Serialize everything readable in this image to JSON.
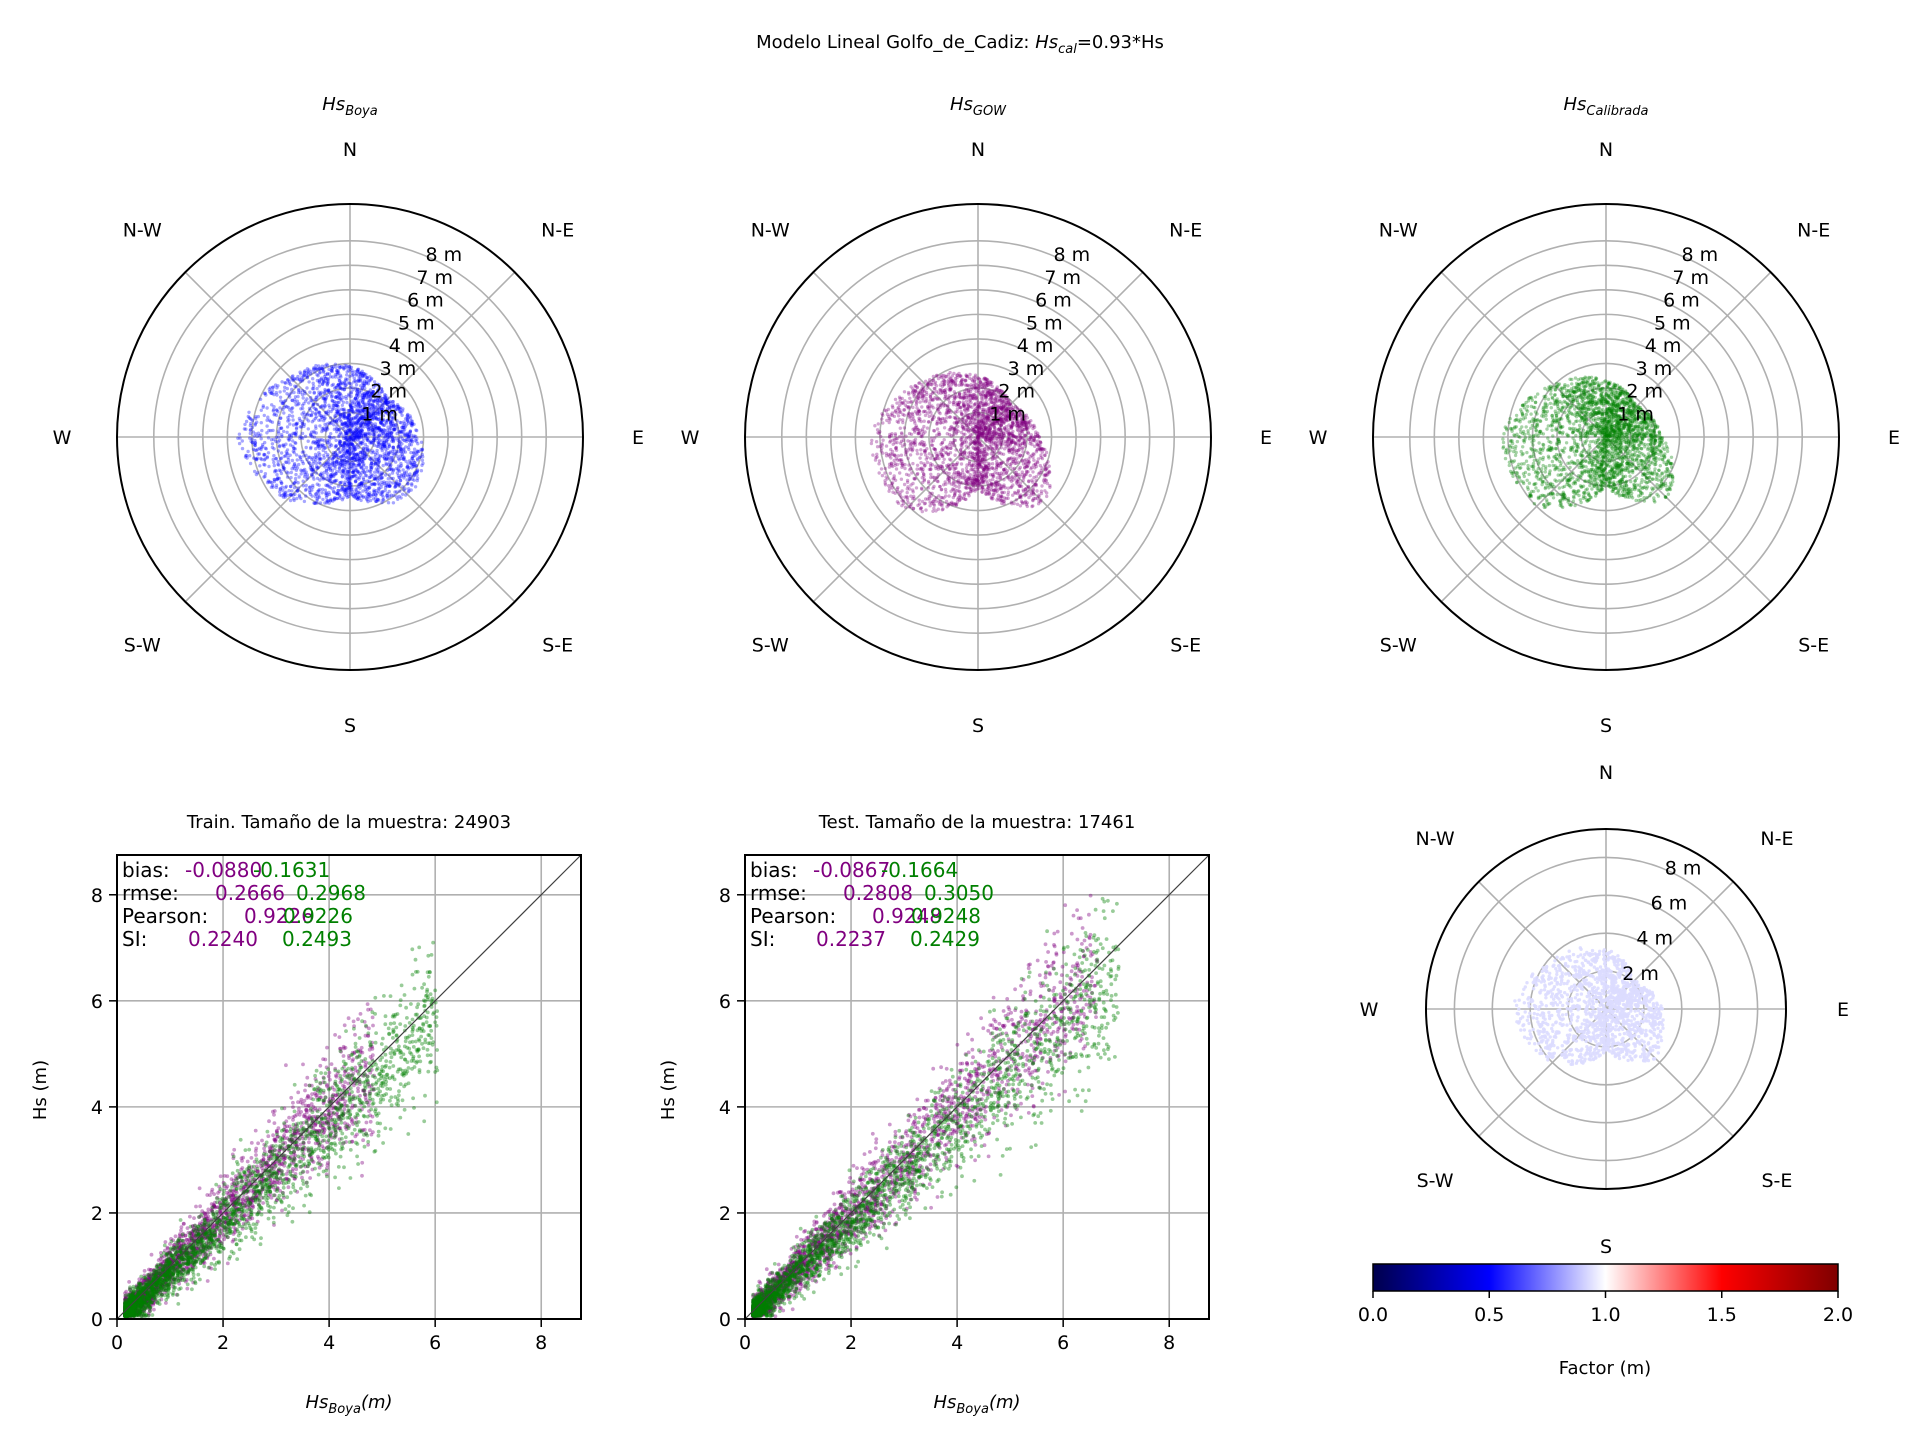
{
  "figure": {
    "title_prefix": "Modelo Lineal Golfo_de_Cadiz: ",
    "title_var": "Hs",
    "title_sub": "cal",
    "title_suffix": "=0.93*Hs"
  },
  "colors": {
    "boya": "#0000ff",
    "gow": "#800080",
    "calibrada": "#008000",
    "factor_points": "#dcdcff",
    "grid": "#b0b0b0",
    "one_to_one": "#404040"
  },
  "chart_data": [
    {
      "type": "scatter",
      "projection": "polar",
      "title_var": "Hs",
      "title_sub": "Boya",
      "directions": [
        "N",
        "N-E",
        "E",
        "S-E",
        "S",
        "S-W",
        "W",
        "N-W"
      ],
      "r_ticks": [
        1,
        2,
        3,
        4,
        5,
        6,
        7,
        8
      ],
      "r_tick_labels": [
        "1 m",
        "2 m",
        "3 m",
        "4 m",
        "5 m",
        "6 m",
        "7 m",
        "8 m"
      ],
      "rlim": [
        0,
        9.5
      ],
      "color": "#0000ff",
      "cloud": {
        "max_r": {
          "N": 2.9,
          "N-E": 2.2,
          "E": 2.9,
          "S-E": 3.5,
          "S": 2.4,
          "S-W": 3.6,
          "W": 4.6,
          "N-W": 3.5
        }
      }
    },
    {
      "type": "scatter",
      "projection": "polar",
      "title_var": "Hs",
      "title_sub": "GOW",
      "directions": [
        "N",
        "N-E",
        "E",
        "S-E",
        "S",
        "S-W",
        "W",
        "N-W"
      ],
      "r_ticks": [
        1,
        2,
        3,
        4,
        5,
        6,
        7,
        8
      ],
      "r_tick_labels": [
        "1 m",
        "2 m",
        "3 m",
        "4 m",
        "5 m",
        "6 m",
        "7 m",
        "8 m"
      ],
      "rlim": [
        0,
        9.5
      ],
      "color": "#800080",
      "cloud": {
        "max_r": {
          "N": 2.5,
          "N-E": 1.9,
          "E": 2.5,
          "S-E": 3.9,
          "S": 2.1,
          "S-W": 4.2,
          "W": 4.4,
          "N-W": 3.2
        }
      }
    },
    {
      "type": "scatter",
      "projection": "polar",
      "title_var": "Hs",
      "title_sub": "Calibrada",
      "directions": [
        "N",
        "N-E",
        "E",
        "S-E",
        "S",
        "S-W",
        "W",
        "N-W"
      ],
      "r_ticks": [
        1,
        2,
        3,
        4,
        5,
        6,
        7,
        8
      ],
      "r_tick_labels": [
        "1 m",
        "2 m",
        "3 m",
        "4 m",
        "5 m",
        "6 m",
        "7 m",
        "8 m"
      ],
      "rlim": [
        0,
        9.5
      ],
      "color": "#008000",
      "cloud": {
        "max_r": {
          "N": 2.3,
          "N-E": 1.8,
          "E": 2.3,
          "S-E": 3.6,
          "S": 2.0,
          "S-W": 4.0,
          "W": 4.3,
          "N-W": 3.0
        }
      }
    },
    {
      "type": "scatter",
      "title": "Train. Tamaño de la muestra: 24903",
      "xlabel_var": "Hs",
      "xlabel_sub": "Boya",
      "xlabel_suffix": "(m)",
      "ylabel": "Hs (m)",
      "xlim": [
        0,
        8.75
      ],
      "ylim": [
        0,
        8.75
      ],
      "xticks": [
        0,
        2,
        4,
        6,
        8
      ],
      "yticks": [
        0,
        2,
        4,
        6,
        8
      ],
      "grid": true,
      "series": [
        {
          "color": "#800080",
          "ratio": 1.0,
          "max_x": 4.7
        },
        {
          "color": "#008000",
          "ratio": 0.93,
          "max_x": 5.9
        }
      ],
      "stats": {
        "labels": [
          "bias:",
          "rmse:",
          "Pearson:",
          "SI:"
        ],
        "gow": [
          "-0.0880",
          "0.2666",
          "0.9226",
          "0.2240"
        ],
        "cal": [
          "-0.1631",
          "0.2968",
          "0.9226",
          "0.2493"
        ]
      }
    },
    {
      "type": "scatter",
      "title": "Test. Tamaño de la muestra: 17461",
      "xlabel_var": "Hs",
      "xlabel_sub": "Boya",
      "xlabel_suffix": "(m)",
      "ylabel": "Hs (m)",
      "xlim": [
        0,
        8.75
      ],
      "ylim": [
        0,
        8.75
      ],
      "xticks": [
        0,
        2,
        4,
        6,
        8
      ],
      "yticks": [
        0,
        2,
        4,
        6,
        8
      ],
      "grid": true,
      "series": [
        {
          "color": "#800080",
          "ratio": 1.0,
          "max_x": 6.5
        },
        {
          "color": "#008000",
          "ratio": 0.93,
          "max_x": 6.9
        }
      ],
      "stats": {
        "labels": [
          "bias:",
          "rmse:",
          "Pearson:",
          "SI:"
        ],
        "gow": [
          "-0.0867",
          "0.2808",
          "0.9248",
          "0.2237"
        ],
        "cal": [
          "-0.1664",
          "0.3050",
          "0.9248",
          "0.2429"
        ]
      }
    },
    {
      "type": "scatter",
      "projection": "polar",
      "directions": [
        "N",
        "N-E",
        "E",
        "S-E",
        "S",
        "S-W",
        "W",
        "N-W"
      ],
      "r_ticks": [
        2,
        4,
        6,
        8
      ],
      "r_tick_labels": [
        "2 m",
        "4 m",
        "6 m",
        "8 m"
      ],
      "rlim": [
        0,
        9.5
      ],
      "color": "#dcdcff",
      "cloud": {
        "max_r": {
          "N": 3.2,
          "N-E": 2.1,
          "E": 3.0,
          "S-E": 3.7,
          "S": 2.3,
          "S-W": 4.0,
          "W": 5.0,
          "N-W": 3.8
        }
      },
      "colorbar": {
        "label": "Factor (m)",
        "range": [
          0,
          2
        ],
        "ticks": [
          0,
          0.5,
          1,
          1.5,
          2
        ],
        "tick_labels": [
          "0.0",
          "0.5",
          "1.0",
          "1.5",
          "2.0"
        ],
        "colormap": "seismic"
      }
    }
  ]
}
